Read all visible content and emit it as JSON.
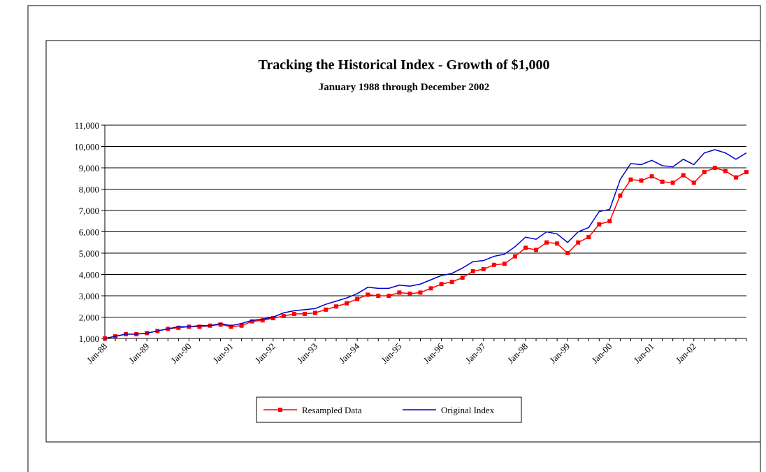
{
  "chart_data": {
    "type": "line",
    "title": "Tracking the Historical Index - Growth of $1,000",
    "subtitle": "January 1988 through December 2002",
    "categories": [
      "Jan-88",
      null,
      null,
      null,
      "Jan-89",
      null,
      null,
      null,
      "Jan-90",
      null,
      null,
      null,
      "Jan-91",
      null,
      null,
      null,
      "Jan-92",
      null,
      null,
      null,
      "Jan-93",
      null,
      null,
      null,
      "Jan-94",
      null,
      null,
      null,
      "Jan-95",
      null,
      null,
      null,
      "Jan-96",
      null,
      null,
      null,
      "Jan-97",
      null,
      null,
      null,
      "Jan-98",
      null,
      null,
      null,
      "Jan-99",
      null,
      null,
      null,
      "Jan-00",
      null,
      null,
      null,
      "Jan-01",
      null,
      null,
      null,
      "Jan-02",
      null,
      null,
      null,
      null,
      null
    ],
    "series": [
      {
        "name": "Resampled Data",
        "color": "#ff0000",
        "marker": "square",
        "values": [
          1000,
          1100,
          1200,
          1200,
          1250,
          1350,
          1450,
          1500,
          1550,
          1550,
          1600,
          1650,
          1550,
          1600,
          1800,
          1850,
          1950,
          2050,
          2150,
          2150,
          2200,
          2350,
          2500,
          2650,
          2850,
          3050,
          3000,
          3000,
          3150,
          3100,
          3150,
          3350,
          3550,
          3650,
          3850,
          4150,
          4250,
          4450,
          4500,
          4850,
          5250,
          5150,
          5500,
          5450,
          5000,
          5500,
          5750,
          6350,
          6500,
          7700,
          8450,
          8400,
          8600,
          8350,
          8300,
          8650,
          8300,
          8800,
          9000,
          8850,
          8550,
          8800
        ]
      },
      {
        "name": "Original Index",
        "color": "#0000cc",
        "marker": "none",
        "values": [
          1000,
          1100,
          1200,
          1200,
          1250,
          1350,
          1450,
          1550,
          1550,
          1600,
          1600,
          1700,
          1600,
          1700,
          1850,
          1900,
          2000,
          2200,
          2300,
          2350,
          2400,
          2600,
          2750,
          2900,
          3100,
          3400,
          3350,
          3350,
          3500,
          3450,
          3550,
          3750,
          3950,
          4050,
          4300,
          4600,
          4650,
          4850,
          4950,
          5300,
          5750,
          5650,
          6000,
          5900,
          5500,
          6000,
          6200,
          6950,
          7050,
          8450,
          9200,
          9150,
          9350,
          9100,
          9050,
          9400,
          9150,
          9700,
          9850,
          9700,
          9400,
          9700
        ]
      }
    ],
    "ylim": [
      1000,
      11000
    ],
    "yticks": [
      {
        "value": 1000,
        "label": "1,000"
      },
      {
        "value": 2000,
        "label": "2,000"
      },
      {
        "value": 3000,
        "label": "3,000"
      },
      {
        "value": 4000,
        "label": "4,000"
      },
      {
        "value": 5000,
        "label": "5,000"
      },
      {
        "value": 6000,
        "label": "6,000"
      },
      {
        "value": 7000,
        "label": "7,000"
      },
      {
        "value": 8000,
        "label": "8,000"
      },
      {
        "value": 9000,
        "label": "9,000"
      },
      {
        "value": 10000,
        "label": "10,000"
      },
      {
        "value": 11000,
        "label": "11,000"
      }
    ],
    "grid": true,
    "legend": "bottom"
  }
}
